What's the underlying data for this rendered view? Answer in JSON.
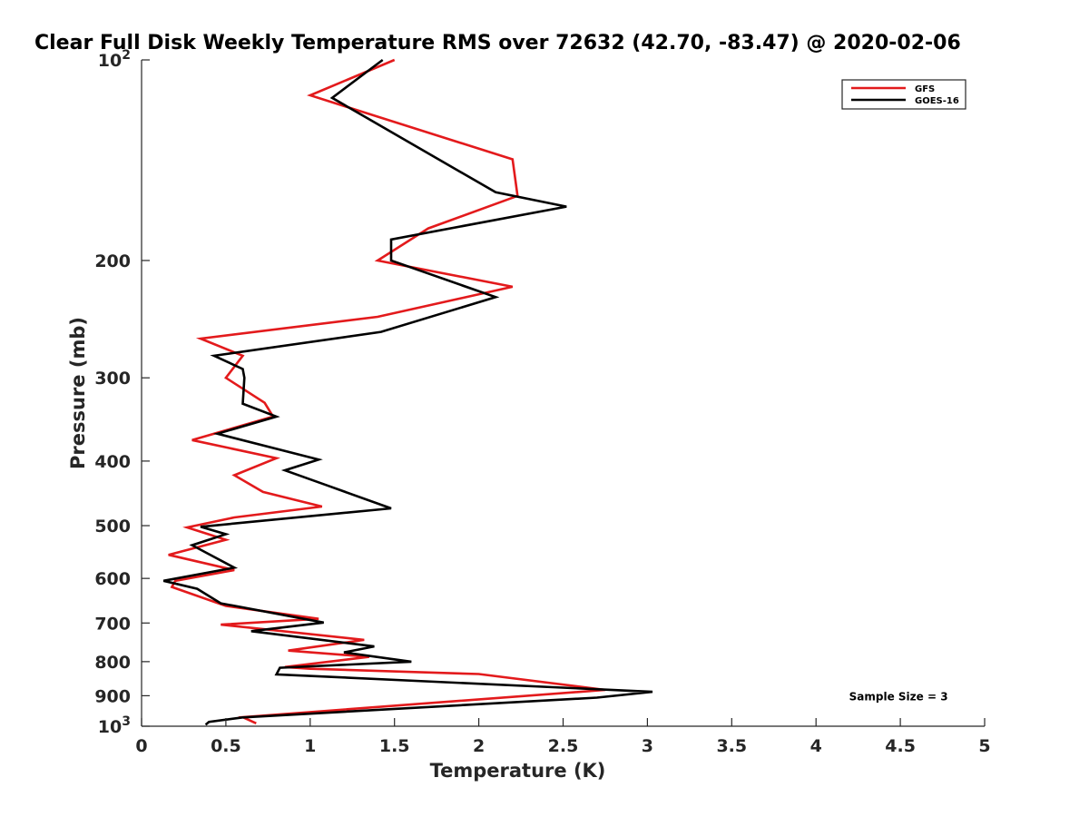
{
  "chart_data": {
    "type": "line",
    "title": "Clear Full Disk Weekly Temperature RMS over 72632 (42.70, -83.47) @ 2020-02-06",
    "xlabel": "Temperature (K)",
    "ylabel": "Pressure (mb)",
    "xlim": [
      0,
      5
    ],
    "ylim": [
      100,
      1000
    ],
    "y_scale": "log",
    "y_direction": "reversed",
    "grid": false,
    "legend_position": "top-right",
    "x_ticks": [
      {
        "value": 0,
        "label": "0"
      },
      {
        "value": 0.5,
        "label": "0.5"
      },
      {
        "value": 1,
        "label": "1"
      },
      {
        "value": 1.5,
        "label": "1.5"
      },
      {
        "value": 2,
        "label": "2"
      },
      {
        "value": 2.5,
        "label": "2.5"
      },
      {
        "value": 3,
        "label": "3"
      },
      {
        "value": 3.5,
        "label": "3.5"
      },
      {
        "value": 4,
        "label": "4"
      },
      {
        "value": 4.5,
        "label": "4.5"
      },
      {
        "value": 5,
        "label": "5"
      }
    ],
    "y_ticks": [
      {
        "value": 100,
        "label": "10",
        "sup": "2"
      },
      {
        "value": 200,
        "label": "200",
        "sup": ""
      },
      {
        "value": 300,
        "label": "300",
        "sup": ""
      },
      {
        "value": 400,
        "label": "400",
        "sup": ""
      },
      {
        "value": 500,
        "label": "500",
        "sup": ""
      },
      {
        "value": 600,
        "label": "600",
        "sup": ""
      },
      {
        "value": 700,
        "label": "700",
        "sup": ""
      },
      {
        "value": 800,
        "label": "800",
        "sup": ""
      },
      {
        "value": 900,
        "label": "900",
        "sup": ""
      },
      {
        "value": 1000,
        "label": "10",
        "sup": "3"
      }
    ],
    "series": [
      {
        "name": "GFS",
        "color": "#e31a1c",
        "points": [
          [
            1.5,
            100
          ],
          [
            1.0,
            113
          ],
          [
            2.2,
            141
          ],
          [
            2.23,
            160
          ],
          [
            1.7,
            179
          ],
          [
            1.4,
            200
          ],
          [
            2.2,
            219
          ],
          [
            1.4,
            243
          ],
          [
            0.35,
            262
          ],
          [
            0.6,
            278
          ],
          [
            0.5,
            300
          ],
          [
            0.73,
            327
          ],
          [
            0.78,
            343
          ],
          [
            0.3,
            372
          ],
          [
            0.8,
            396
          ],
          [
            0.55,
            420
          ],
          [
            0.72,
            445
          ],
          [
            1.07,
            468
          ],
          [
            0.55,
            486
          ],
          [
            0.27,
            503
          ],
          [
            0.5,
            525
          ],
          [
            0.16,
            553
          ],
          [
            0.55,
            583
          ],
          [
            0.2,
            605
          ],
          [
            0.18,
            618
          ],
          [
            0.5,
            660
          ],
          [
            1.05,
            690
          ],
          [
            0.47,
            704
          ],
          [
            1.32,
            742
          ],
          [
            0.87,
            770
          ],
          [
            1.35,
            787
          ],
          [
            0.85,
            815
          ],
          [
            1.0,
            820
          ],
          [
            2.0,
            835
          ],
          [
            2.75,
            882
          ],
          [
            0.6,
            969
          ],
          [
            0.68,
            990
          ]
        ]
      },
      {
        "name": "GOES-16",
        "color": "#000000",
        "points": [
          [
            1.43,
            100
          ],
          [
            1.13,
            114
          ],
          [
            2.1,
            158
          ],
          [
            2.52,
            166
          ],
          [
            1.48,
            186
          ],
          [
            1.48,
            200
          ],
          [
            2.1,
            227
          ],
          [
            1.42,
            256
          ],
          [
            0.43,
            278
          ],
          [
            0.6,
            291
          ],
          [
            0.61,
            300
          ],
          [
            0.6,
            328
          ],
          [
            0.8,
            343
          ],
          [
            0.45,
            364
          ],
          [
            1.05,
            398
          ],
          [
            0.85,
            413
          ],
          [
            1.1,
            435
          ],
          [
            1.48,
            471
          ],
          [
            0.35,
            502
          ],
          [
            0.5,
            515
          ],
          [
            0.3,
            535
          ],
          [
            0.55,
            578
          ],
          [
            0.13,
            605
          ],
          [
            0.33,
            622
          ],
          [
            0.47,
            654
          ],
          [
            1.08,
            699
          ],
          [
            0.65,
            720
          ],
          [
            1.38,
            759
          ],
          [
            1.2,
            775
          ],
          [
            1.6,
            800
          ],
          [
            0.82,
            817
          ],
          [
            0.8,
            836
          ],
          [
            3.03,
            888
          ],
          [
            2.7,
            906
          ],
          [
            0.6,
            970
          ],
          [
            0.4,
            985
          ],
          [
            0.38,
            995
          ]
        ]
      }
    ],
    "annotations": [
      {
        "text": "Sample Size = 3",
        "x": 4.5,
        "y": 900
      }
    ]
  }
}
